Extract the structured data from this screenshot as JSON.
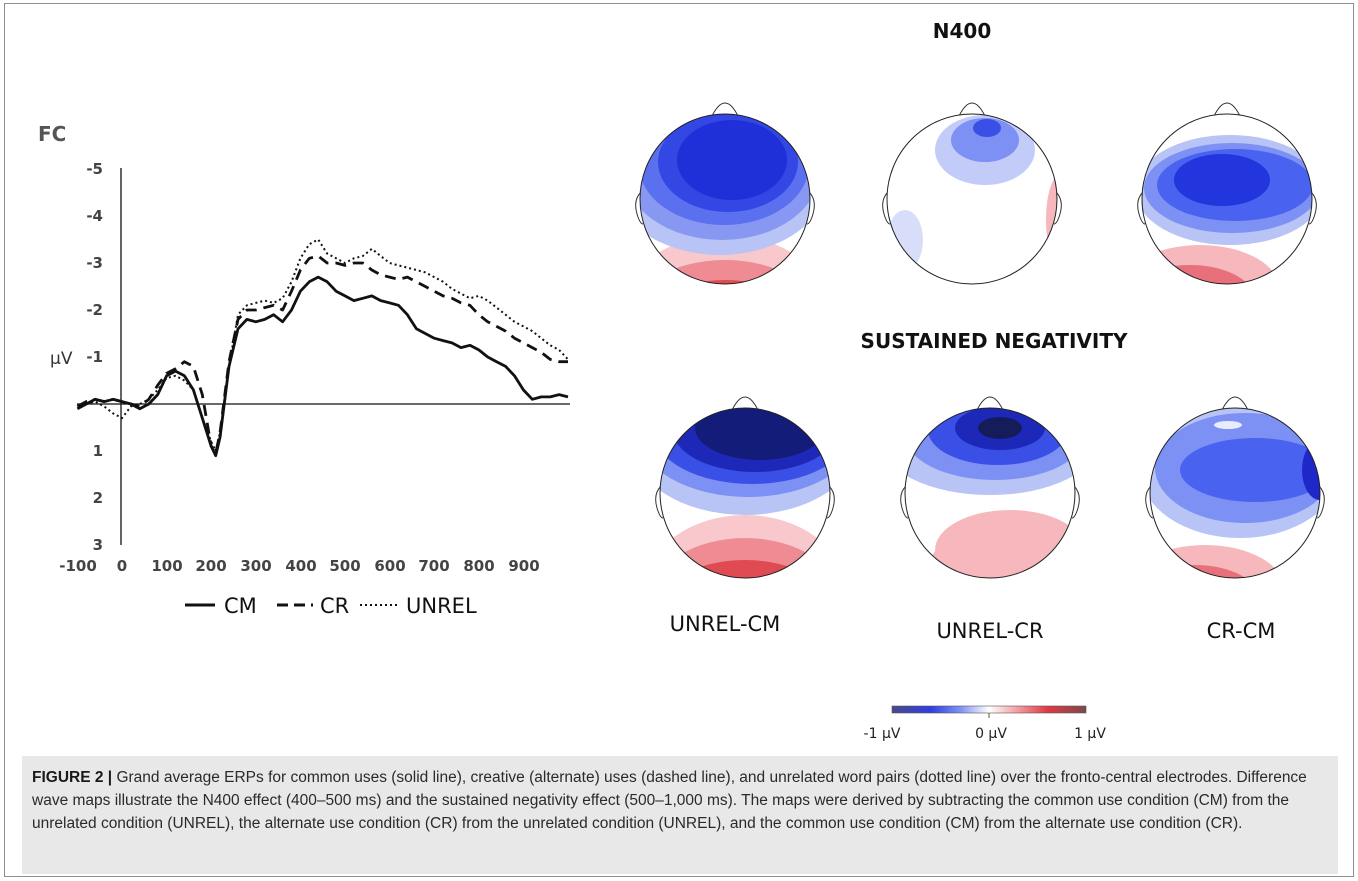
{
  "erp_chart": {
    "title": "FC",
    "unit_label": "μV",
    "x_ticks": [
      "-100",
      "0",
      "100",
      "200",
      "300",
      "400",
      "500",
      "600",
      "700",
      "800",
      "900"
    ],
    "y_ticks": [
      "-5",
      "-4",
      "-3",
      "-2",
      "-1",
      "1",
      "2",
      "3"
    ],
    "legend": [
      {
        "name": "CM",
        "dash": "solid"
      },
      {
        "name": "CR",
        "dash": "dashed"
      },
      {
        "name": "UNREL",
        "dash": "dotted"
      }
    ]
  },
  "chart_data": {
    "type": "line",
    "title": "FC",
    "xlabel": "",
    "ylabel": "μV",
    "xlim": [
      -100,
      1000
    ],
    "ylim": [
      -5,
      3
    ],
    "y_axis_inverted": true,
    "series": [
      {
        "name": "CM",
        "x": [
          -100,
          -80,
          -60,
          -40,
          -20,
          0,
          20,
          40,
          60,
          80,
          100,
          120,
          140,
          160,
          180,
          200,
          210,
          220,
          240,
          260,
          280,
          300,
          320,
          340,
          360,
          380,
          400,
          420,
          440,
          460,
          480,
          500,
          520,
          540,
          560,
          580,
          600,
          620,
          640,
          660,
          680,
          700,
          720,
          740,
          760,
          780,
          800,
          820,
          840,
          860,
          880,
          900,
          920,
          940,
          960,
          980,
          1000
        ],
        "y": [
          0.1,
          0.0,
          -0.1,
          -0.05,
          -0.1,
          -0.05,
          0.0,
          0.1,
          0.0,
          -0.2,
          -0.6,
          -0.7,
          -0.6,
          -0.3,
          0.3,
          0.9,
          1.1,
          0.7,
          -0.8,
          -1.6,
          -1.8,
          -1.75,
          -1.8,
          -1.9,
          -1.75,
          -2.0,
          -2.4,
          -2.6,
          -2.7,
          -2.6,
          -2.4,
          -2.3,
          -2.2,
          -2.25,
          -2.3,
          -2.2,
          -2.15,
          -2.1,
          -1.9,
          -1.6,
          -1.5,
          -1.4,
          -1.35,
          -1.3,
          -1.2,
          -1.25,
          -1.15,
          -1.0,
          -0.9,
          -0.8,
          -0.6,
          -0.3,
          -0.1,
          -0.15,
          -0.15,
          -0.2,
          -0.15
        ]
      },
      {
        "name": "CR",
        "x": [
          -100,
          -80,
          -60,
          -40,
          -20,
          0,
          20,
          40,
          60,
          80,
          100,
          120,
          140,
          160,
          180,
          200,
          210,
          220,
          240,
          260,
          280,
          300,
          320,
          340,
          360,
          380,
          400,
          420,
          440,
          460,
          480,
          500,
          520,
          540,
          560,
          580,
          600,
          620,
          640,
          660,
          680,
          700,
          720,
          740,
          760,
          780,
          800,
          820,
          840,
          860,
          880,
          900,
          920,
          940,
          960,
          980,
          1000
        ],
        "y": [
          0.05,
          -0.05,
          -0.1,
          -0.05,
          -0.1,
          -0.05,
          0.0,
          0.05,
          -0.1,
          -0.4,
          -0.65,
          -0.75,
          -0.9,
          -0.8,
          -0.2,
          0.9,
          1.05,
          0.6,
          -0.9,
          -1.8,
          -2.0,
          -2.0,
          -2.05,
          -2.1,
          -2.0,
          -2.4,
          -2.85,
          -3.1,
          -3.15,
          -3.0,
          -3.0,
          -2.95,
          -3.0,
          -3.0,
          -2.85,
          -2.75,
          -2.7,
          -2.65,
          -2.7,
          -2.6,
          -2.5,
          -2.4,
          -2.3,
          -2.25,
          -2.15,
          -2.1,
          -1.9,
          -1.75,
          -1.65,
          -1.55,
          -1.4,
          -1.3,
          -1.2,
          -1.1,
          -0.95,
          -0.9,
          -0.9
        ]
      },
      {
        "name": "UNREL",
        "x": [
          -100,
          -80,
          -60,
          -40,
          -20,
          0,
          20,
          40,
          60,
          80,
          100,
          120,
          140,
          160,
          180,
          200,
          210,
          220,
          240,
          260,
          280,
          300,
          320,
          340,
          360,
          380,
          400,
          420,
          440,
          460,
          480,
          500,
          520,
          540,
          560,
          580,
          600,
          620,
          640,
          660,
          680,
          700,
          720,
          740,
          760,
          780,
          800,
          820,
          840,
          860,
          880,
          900,
          920,
          940,
          960,
          980,
          1000
        ],
        "y": [
          0.1,
          0.0,
          -0.05,
          0.05,
          0.2,
          0.3,
          0.05,
          0.0,
          -0.1,
          -0.3,
          -0.55,
          -0.6,
          -0.5,
          -0.3,
          0.3,
          0.8,
          1.0,
          0.6,
          -0.8,
          -1.9,
          -2.1,
          -2.15,
          -2.2,
          -2.15,
          -2.25,
          -2.6,
          -3.1,
          -3.4,
          -3.5,
          -3.2,
          -3.1,
          -3.0,
          -3.1,
          -3.15,
          -3.3,
          -3.15,
          -3.0,
          -2.95,
          -2.9,
          -2.85,
          -2.8,
          -2.7,
          -2.6,
          -2.45,
          -2.35,
          -2.25,
          -2.3,
          -2.2,
          -2.05,
          -1.9,
          -1.75,
          -1.65,
          -1.55,
          -1.4,
          -1.25,
          -1.15,
          -0.95
        ]
      }
    ]
  },
  "maps": {
    "n400_heading": "N400",
    "sustained_heading": "SUSTAINED NEGATIVITY",
    "labels": [
      "UNREL-CM",
      "UNREL-CR",
      "CR-CM"
    ]
  },
  "colorbar": {
    "min_label": "-1 μV",
    "mid_label": "0 μV",
    "max_label": "1 μV",
    "colors": [
      "#3a3a9e",
      "#2f3fe0",
      "#4a62f0",
      "#7d90f4",
      "#b3bff7",
      "#ffffff",
      "#f6b8bc",
      "#ef8088",
      "#e44a52",
      "#c01a1e",
      "#7a1010"
    ]
  },
  "caption": {
    "label": "FIGURE 2 |",
    "text": " Grand average ERPs for common uses (solid line), creative (alternate) uses (dashed line), and unrelated word pairs (dotted line) over the fronto-central electrodes. Difference wave maps illustrate the N400 effect (400–500 ms) and the sustained negativity effect (500–1,000 ms). The maps were derived by subtracting the common use condition (CM) from the unrelated condition (UNREL), the alternate use condition (CR) from the unrelated condition (UNREL), and the common use condition (CM) from the alternate use condition (CR)."
  }
}
